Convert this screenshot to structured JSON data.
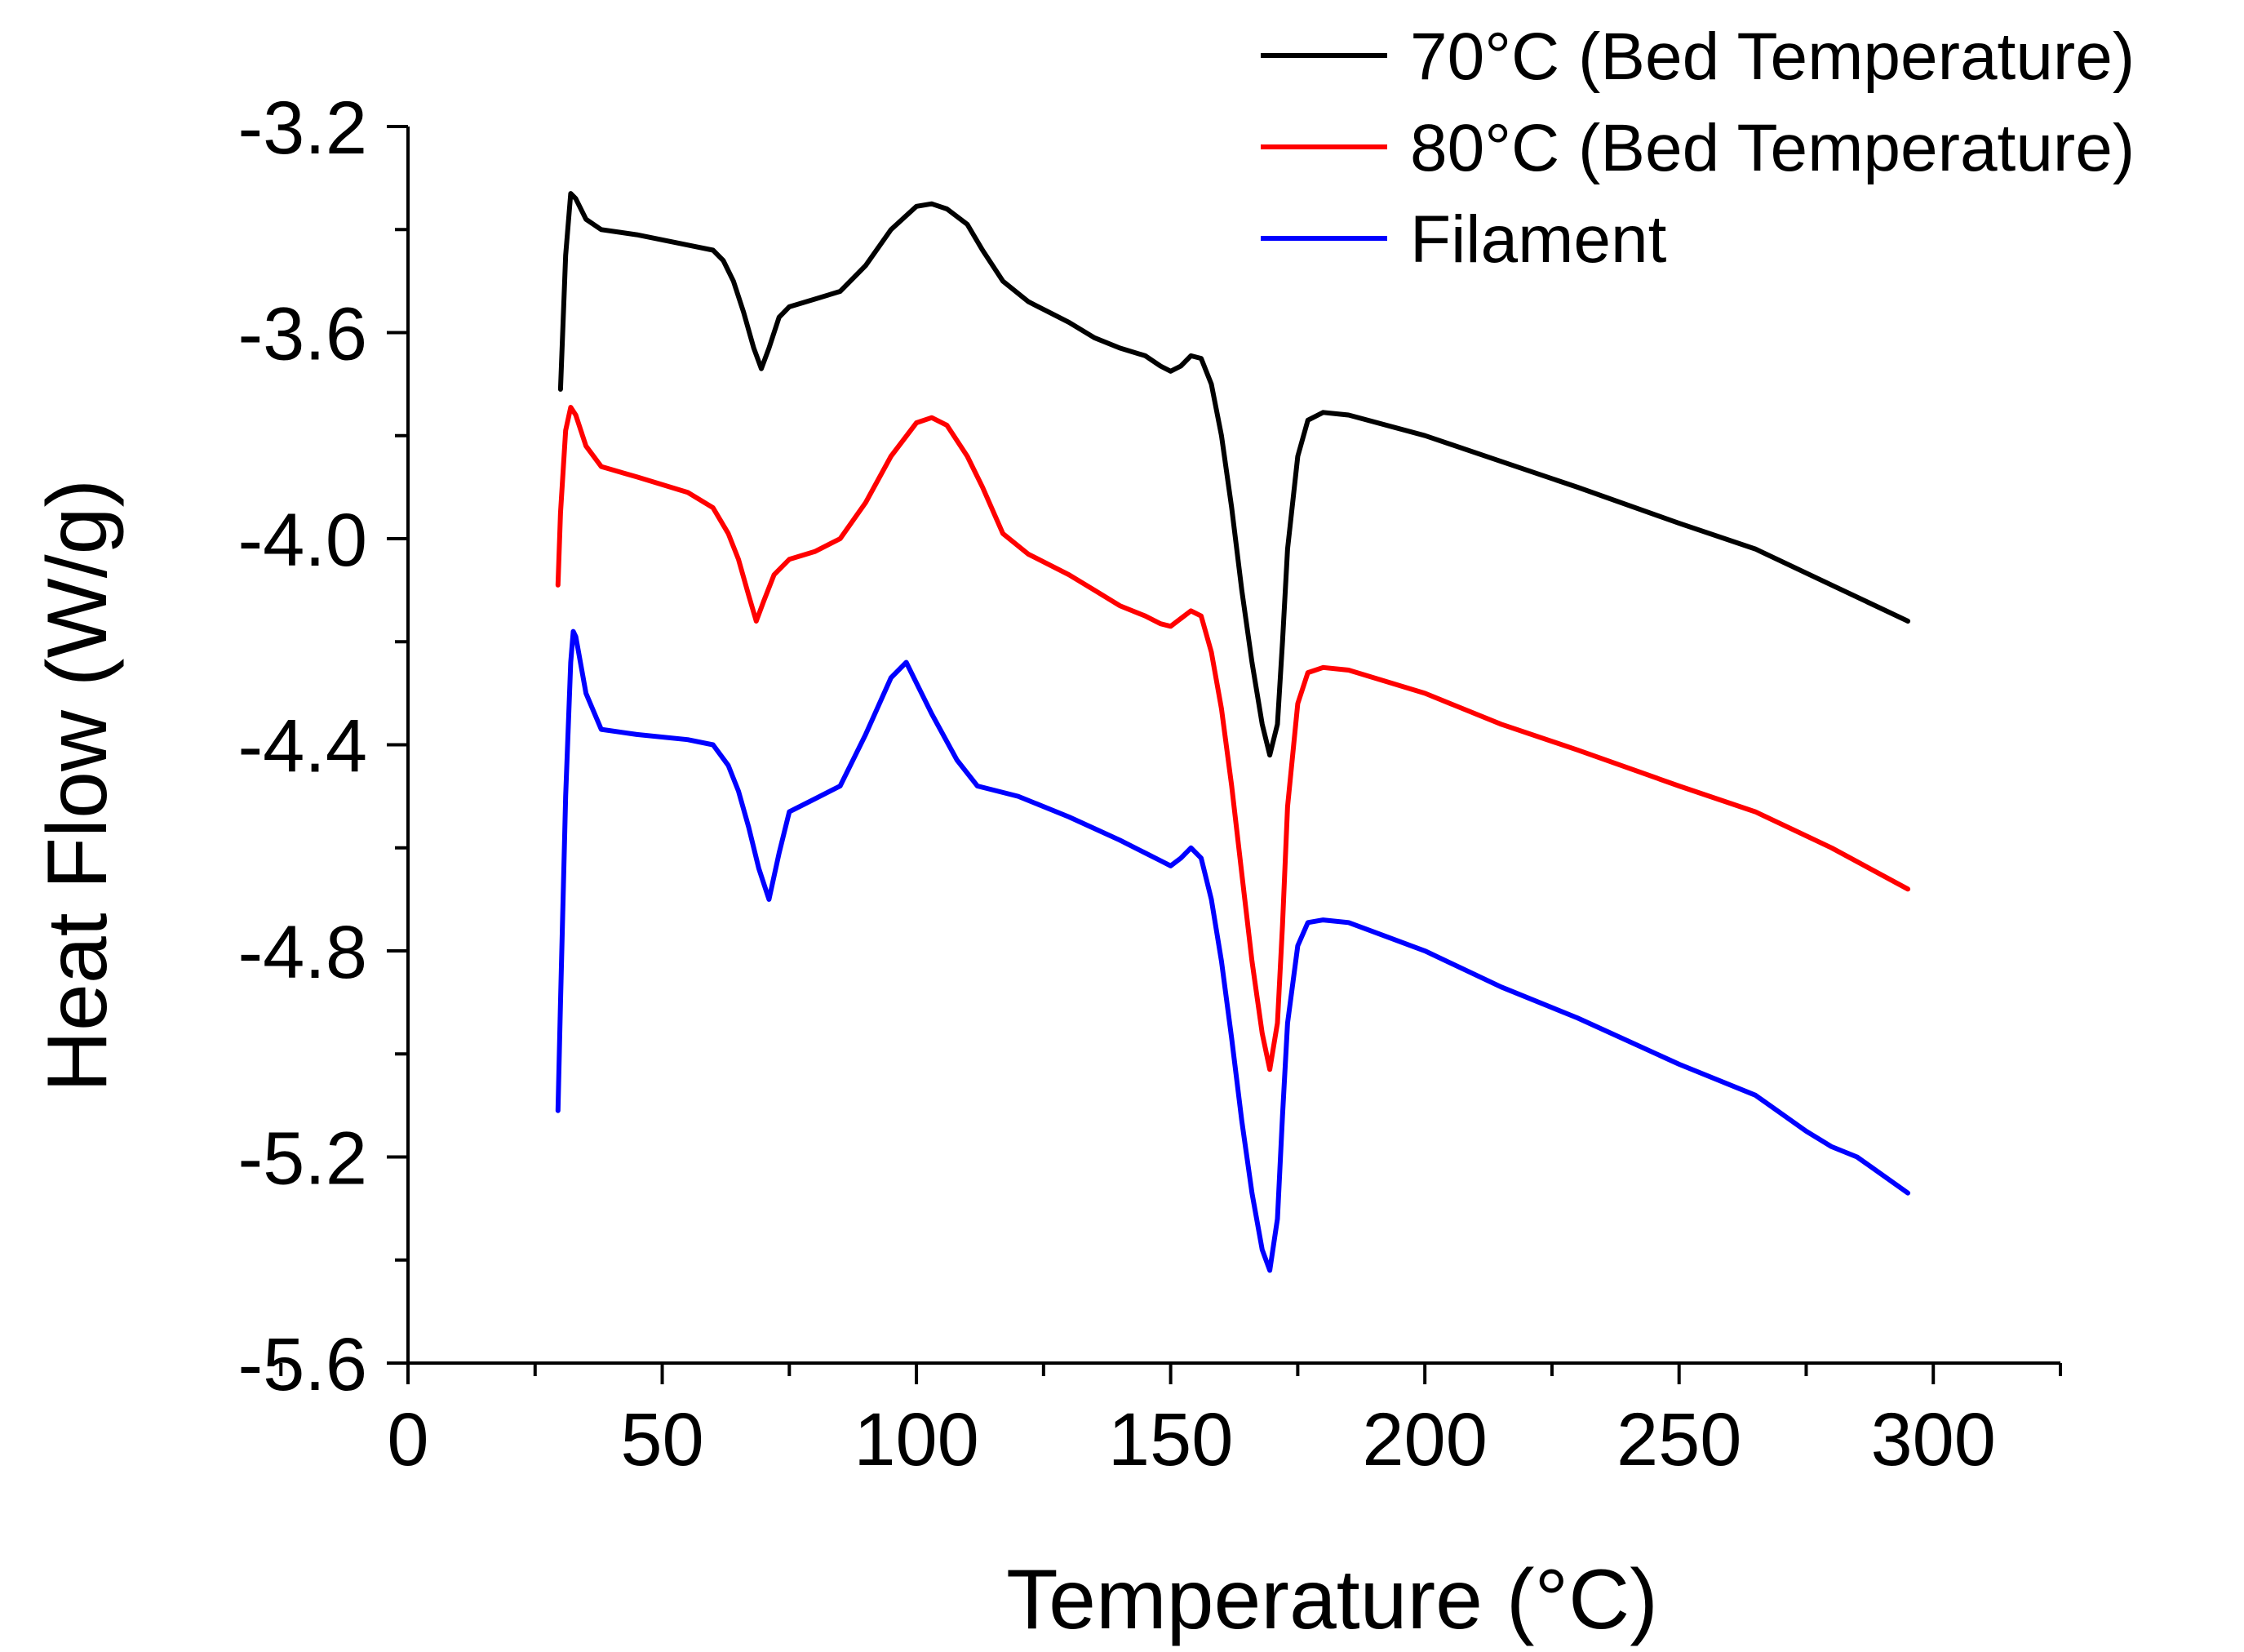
{
  "chart_data": {
    "type": "line",
    "title": "",
    "xlabel": "Temperature (°C)",
    "ylabel": "Heat Flow (W/g)",
    "xlim": [
      0,
      325
    ],
    "ylim": [
      -5.6,
      -3.2
    ],
    "x_ticks": [
      0,
      50,
      100,
      150,
      200,
      250,
      300
    ],
    "x_tick_labels": [
      "0",
      "50",
      "100",
      "150",
      "200",
      "250",
      "300"
    ],
    "y_ticks": [
      -3.2,
      -3.6,
      -4.0,
      -4.4,
      -4.8,
      -5.2,
      -5.6
    ],
    "y_tick_labels": [
      "-3.2",
      "-3.6",
      "-4.0",
      "-4.4",
      "-4.8",
      "-5.2",
      "-5.6"
    ],
    "grid": false,
    "legend_position": "top-right",
    "series": [
      {
        "name": "70°C (Bed Temperature)",
        "color": "#000000",
        "points": [
          [
            30,
            -3.71
          ],
          [
            31,
            -3.45
          ],
          [
            32,
            -3.33
          ],
          [
            33,
            -3.34
          ],
          [
            35,
            -3.38
          ],
          [
            38,
            -3.4
          ],
          [
            45,
            -3.41
          ],
          [
            55,
            -3.43
          ],
          [
            60,
            -3.44
          ],
          [
            62,
            -3.46
          ],
          [
            64,
            -3.5
          ],
          [
            66,
            -3.56
          ],
          [
            68,
            -3.63
          ],
          [
            69.5,
            -3.67
          ],
          [
            71,
            -3.63
          ],
          [
            73,
            -3.57
          ],
          [
            75,
            -3.55
          ],
          [
            80,
            -3.535
          ],
          [
            85,
            -3.52
          ],
          [
            90,
            -3.47
          ],
          [
            95,
            -3.4
          ],
          [
            100,
            -3.355
          ],
          [
            103,
            -3.35
          ],
          [
            106,
            -3.36
          ],
          [
            110,
            -3.39
          ],
          [
            113,
            -3.44
          ],
          [
            117,
            -3.5
          ],
          [
            122,
            -3.54
          ],
          [
            130,
            -3.58
          ],
          [
            135,
            -3.61
          ],
          [
            140,
            -3.63
          ],
          [
            145,
            -3.645
          ],
          [
            148,
            -3.665
          ],
          [
            150,
            -3.675
          ],
          [
            152,
            -3.665
          ],
          [
            154,
            -3.645
          ],
          [
            156,
            -3.65
          ],
          [
            158,
            -3.7
          ],
          [
            160,
            -3.8
          ],
          [
            162,
            -3.94
          ],
          [
            164,
            -4.1
          ],
          [
            166,
            -4.24
          ],
          [
            168,
            -4.36
          ],
          [
            169.5,
            -4.42
          ],
          [
            171,
            -4.36
          ],
          [
            172,
            -4.2
          ],
          [
            173,
            -4.02
          ],
          [
            175,
            -3.84
          ],
          [
            177,
            -3.77
          ],
          [
            180,
            -3.755
          ],
          [
            185,
            -3.76
          ],
          [
            200,
            -3.8
          ],
          [
            215,
            -3.85
          ],
          [
            230,
            -3.9
          ],
          [
            250,
            -3.97
          ],
          [
            265,
            -4.02
          ],
          [
            280,
            -4.09
          ],
          [
            295,
            -4.16
          ]
        ]
      },
      {
        "name": "80°C (Bed Temperature)",
        "color": "#ff0000",
        "points": [
          [
            29.5,
            -4.09
          ],
          [
            30,
            -3.95
          ],
          [
            31,
            -3.79
          ],
          [
            32,
            -3.745
          ],
          [
            33,
            -3.76
          ],
          [
            35,
            -3.82
          ],
          [
            38,
            -3.86
          ],
          [
            45,
            -3.88
          ],
          [
            55,
            -3.91
          ],
          [
            60,
            -3.94
          ],
          [
            63,
            -3.99
          ],
          [
            65,
            -4.04
          ],
          [
            67,
            -4.11
          ],
          [
            68.5,
            -4.16
          ],
          [
            70,
            -4.12
          ],
          [
            72,
            -4.07
          ],
          [
            75,
            -4.04
          ],
          [
            80,
            -4.025
          ],
          [
            85,
            -4.0
          ],
          [
            90,
            -3.93
          ],
          [
            95,
            -3.84
          ],
          [
            100,
            -3.775
          ],
          [
            103,
            -3.765
          ],
          [
            106,
            -3.78
          ],
          [
            110,
            -3.84
          ],
          [
            113,
            -3.9
          ],
          [
            117,
            -3.99
          ],
          [
            122,
            -4.03
          ],
          [
            130,
            -4.07
          ],
          [
            135,
            -4.1
          ],
          [
            140,
            -4.13
          ],
          [
            145,
            -4.15
          ],
          [
            148,
            -4.165
          ],
          [
            150,
            -4.17
          ],
          [
            152,
            -4.155
          ],
          [
            154,
            -4.14
          ],
          [
            156,
            -4.15
          ],
          [
            158,
            -4.22
          ],
          [
            160,
            -4.33
          ],
          [
            162,
            -4.48
          ],
          [
            164,
            -4.65
          ],
          [
            166,
            -4.82
          ],
          [
            168,
            -4.96
          ],
          [
            169.5,
            -5.03
          ],
          [
            171,
            -4.94
          ],
          [
            172,
            -4.75
          ],
          [
            173,
            -4.52
          ],
          [
            175,
            -4.32
          ],
          [
            177,
            -4.26
          ],
          [
            180,
            -4.25
          ],
          [
            185,
            -4.255
          ],
          [
            200,
            -4.3
          ],
          [
            215,
            -4.36
          ],
          [
            230,
            -4.41
          ],
          [
            250,
            -4.48
          ],
          [
            265,
            -4.53
          ],
          [
            280,
            -4.6
          ],
          [
            295,
            -4.68
          ]
        ]
      },
      {
        "name": "Filament",
        "color": "#0000ff",
        "points": [
          [
            29.5,
            -5.11
          ],
          [
            30,
            -4.9
          ],
          [
            31,
            -4.5
          ],
          [
            32,
            -4.24
          ],
          [
            32.5,
            -4.18
          ],
          [
            33,
            -4.19
          ],
          [
            35,
            -4.3
          ],
          [
            38,
            -4.37
          ],
          [
            45,
            -4.38
          ],
          [
            55,
            -4.39
          ],
          [
            60,
            -4.4
          ],
          [
            63,
            -4.44
          ],
          [
            65,
            -4.49
          ],
          [
            67,
            -4.56
          ],
          [
            69,
            -4.64
          ],
          [
            71,
            -4.7
          ],
          [
            73,
            -4.61
          ],
          [
            75,
            -4.53
          ],
          [
            80,
            -4.505
          ],
          [
            85,
            -4.48
          ],
          [
            90,
            -4.38
          ],
          [
            95,
            -4.27
          ],
          [
            98,
            -4.24
          ],
          [
            100,
            -4.28
          ],
          [
            103,
            -4.34
          ],
          [
            108,
            -4.43
          ],
          [
            112,
            -4.48
          ],
          [
            120,
            -4.5
          ],
          [
            130,
            -4.54
          ],
          [
            140,
            -4.585
          ],
          [
            145,
            -4.61
          ],
          [
            148,
            -4.625
          ],
          [
            150,
            -4.635
          ],
          [
            152,
            -4.62
          ],
          [
            154,
            -4.6
          ],
          [
            156,
            -4.62
          ],
          [
            158,
            -4.7
          ],
          [
            160,
            -4.82
          ],
          [
            162,
            -4.97
          ],
          [
            164,
            -5.13
          ],
          [
            166,
            -5.27
          ],
          [
            168,
            -5.38
          ],
          [
            169.5,
            -5.42
          ],
          [
            171,
            -5.32
          ],
          [
            172,
            -5.12
          ],
          [
            173,
            -4.94
          ],
          [
            175,
            -4.79
          ],
          [
            177,
            -4.745
          ],
          [
            180,
            -4.74
          ],
          [
            185,
            -4.745
          ],
          [
            200,
            -4.8
          ],
          [
            215,
            -4.87
          ],
          [
            230,
            -4.93
          ],
          [
            250,
            -5.02
          ],
          [
            265,
            -5.08
          ],
          [
            275,
            -5.15
          ],
          [
            280,
            -5.18
          ],
          [
            285,
            -5.2
          ],
          [
            295,
            -5.27
          ]
        ]
      }
    ]
  }
}
